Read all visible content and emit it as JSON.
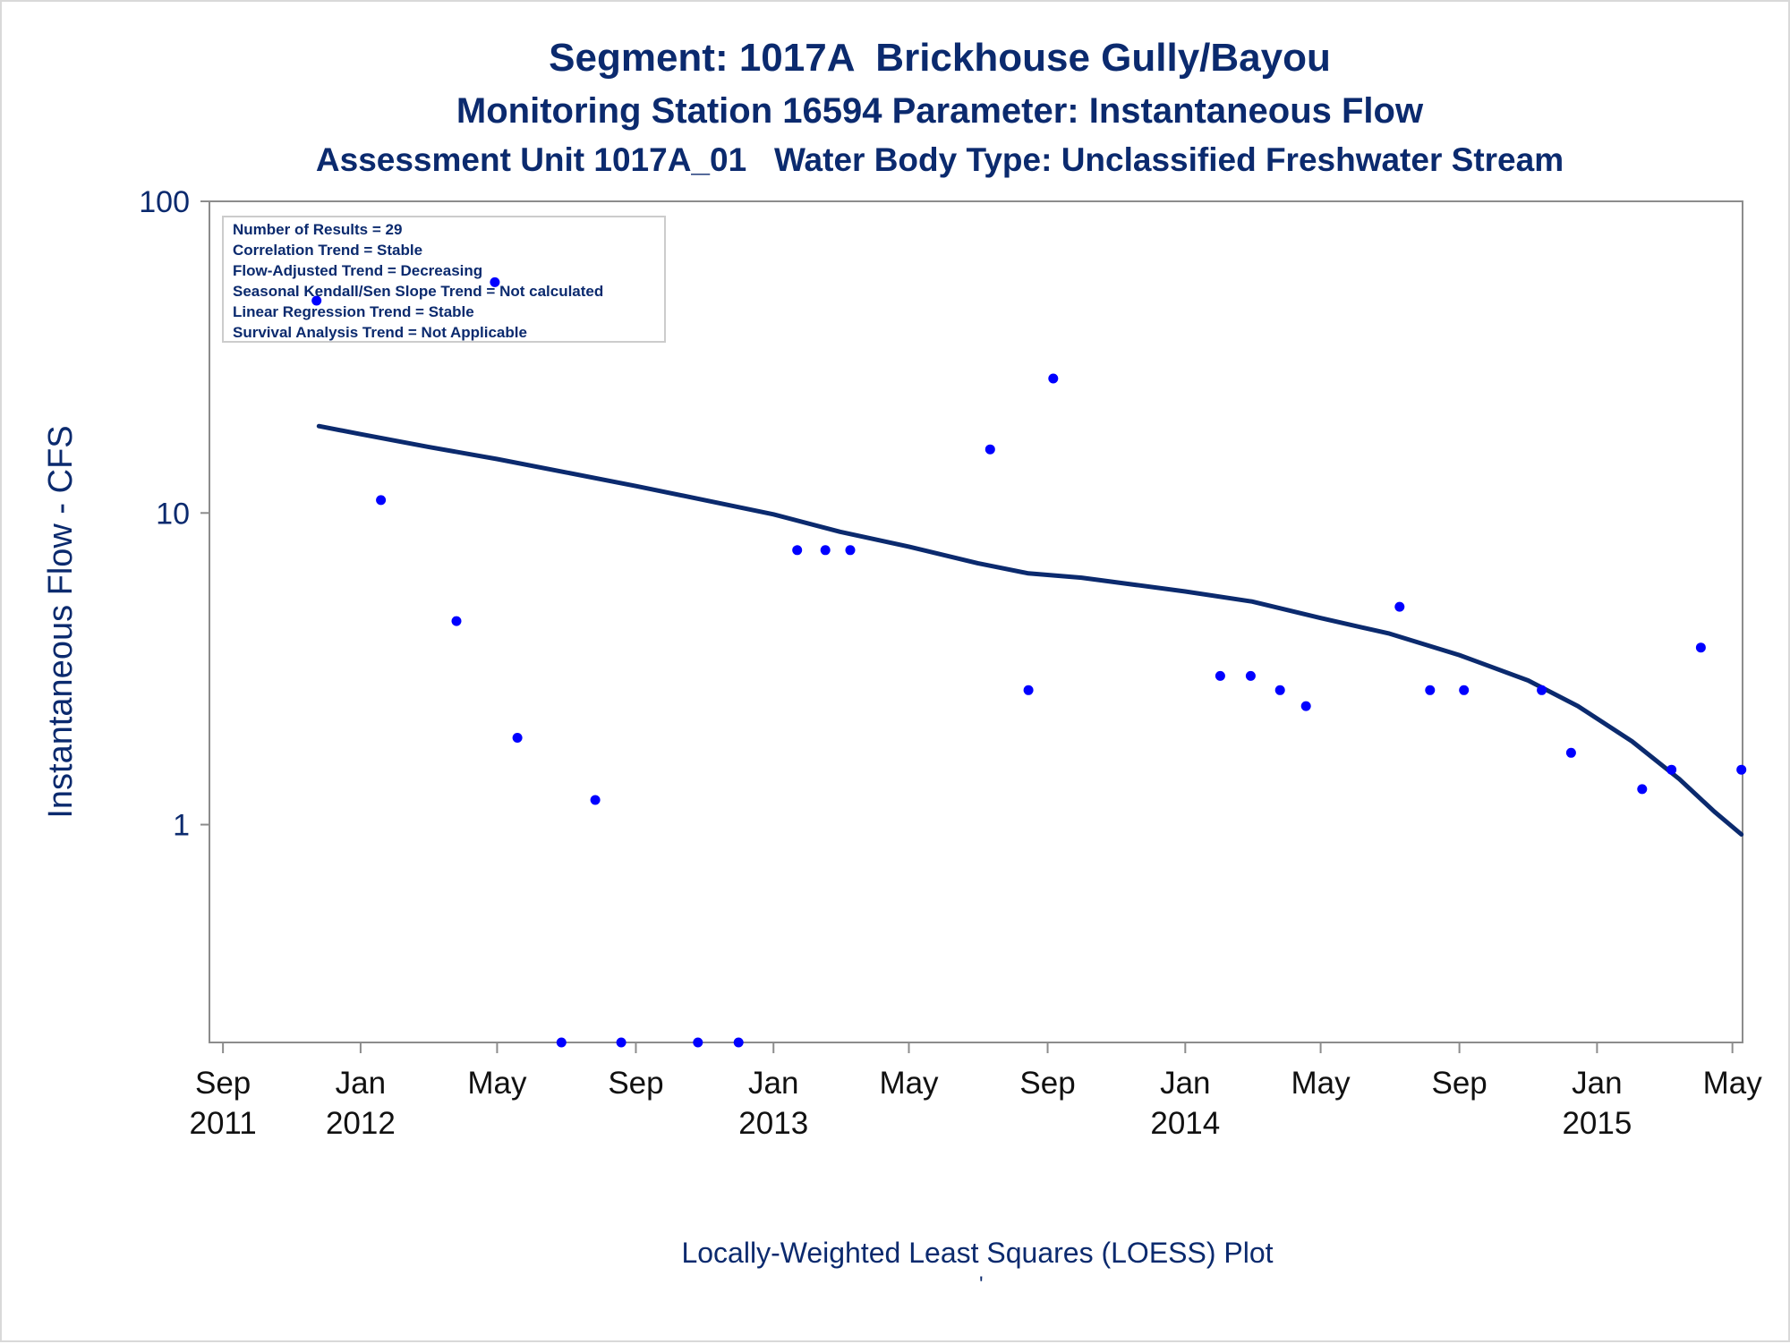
{
  "titles": {
    "line1": "Segment: 1017A  Brickhouse Gully/Bayou",
    "line2": "Monitoring Station 16594 Parameter: Instantaneous Flow",
    "line3": "Assessment Unit 1017A_01   Water Body Type: Unclassified Freshwater Stream"
  },
  "footnote": "Locally-Weighted Least Squares (LOESS) Plot",
  "footnote_mark": "'",
  "stats_box": [
    "Number of Results = 29",
    "Correlation Trend = Stable",
    "Flow-Adjusted Trend = Decreasing",
    "Seasonal Kendall/Sen Slope Trend = Not calculated",
    "Linear Regression Trend = Stable",
    "Survival Analysis Trend = Not Applicable"
  ],
  "colors": {
    "text": "#0b2a6e",
    "points": "#0000ff",
    "loess": "#0b2a6e",
    "axis": "#8c8c8c",
    "stats_border": "#cccccc"
  },
  "chart_data": {
    "type": "scatter",
    "ylabel": "Instantaneous Flow - CFS",
    "y_scale": "log",
    "ylim": [
      0.2,
      100
    ],
    "y_ticks": [
      {
        "value": 1,
        "label": "1"
      },
      {
        "value": 10,
        "label": "10"
      },
      {
        "value": 100,
        "label": "100"
      }
    ],
    "xlim": [
      "2011-08-20",
      "2015-05-10"
    ],
    "x_ticks": [
      {
        "date": "2011-09-01",
        "line1": "Sep",
        "line2": "2011"
      },
      {
        "date": "2012-01-01",
        "line1": "Jan",
        "line2": "2012"
      },
      {
        "date": "2012-05-01",
        "line1": "May",
        "line2": ""
      },
      {
        "date": "2012-09-01",
        "line1": "Sep",
        "line2": ""
      },
      {
        "date": "2013-01-01",
        "line1": "Jan",
        "line2": "2013"
      },
      {
        "date": "2013-05-01",
        "line1": "May",
        "line2": ""
      },
      {
        "date": "2013-09-01",
        "line1": "Sep",
        "line2": ""
      },
      {
        "date": "2014-01-01",
        "line1": "Jan",
        "line2": "2014"
      },
      {
        "date": "2014-05-01",
        "line1": "May",
        "line2": ""
      },
      {
        "date": "2014-09-01",
        "line1": "Sep",
        "line2": ""
      },
      {
        "date": "2015-01-01",
        "line1": "Jan",
        "line2": "2015"
      },
      {
        "date": "2015-05-01",
        "line1": "May",
        "line2": ""
      }
    ],
    "points": [
      {
        "x": "2011-11-23",
        "y": 48
      },
      {
        "x": "2012-01-19",
        "y": 11
      },
      {
        "x": "2012-03-26",
        "y": 4.5
      },
      {
        "x": "2012-04-29",
        "y": 55
      },
      {
        "x": "2012-05-19",
        "y": 1.9
      },
      {
        "x": "2012-06-27",
        "y": 0.2
      },
      {
        "x": "2012-07-27",
        "y": 1.2
      },
      {
        "x": "2012-08-19",
        "y": 0.2
      },
      {
        "x": "2012-10-26",
        "y": 0.2
      },
      {
        "x": "2012-12-01",
        "y": 0.2
      },
      {
        "x": "2013-01-22",
        "y": 7.6
      },
      {
        "x": "2013-02-16",
        "y": 7.6
      },
      {
        "x": "2013-03-10",
        "y": 7.6
      },
      {
        "x": "2013-07-12",
        "y": 16
      },
      {
        "x": "2013-08-15",
        "y": 2.7
      },
      {
        "x": "2013-09-06",
        "y": 27
      },
      {
        "x": "2014-02-01",
        "y": 3.0
      },
      {
        "x": "2014-02-28",
        "y": 3.0
      },
      {
        "x": "2014-03-26",
        "y": 2.7
      },
      {
        "x": "2014-04-18",
        "y": 2.4
      },
      {
        "x": "2014-07-10",
        "y": 5.0
      },
      {
        "x": "2014-08-06",
        "y": 2.7
      },
      {
        "x": "2014-09-05",
        "y": 2.7
      },
      {
        "x": "2014-11-13",
        "y": 2.7
      },
      {
        "x": "2014-12-09",
        "y": 1.7
      },
      {
        "x": "2015-02-10",
        "y": 1.3
      },
      {
        "x": "2015-03-08",
        "y": 1.5
      },
      {
        "x": "2015-04-03",
        "y": 3.7
      },
      {
        "x": "2015-05-09",
        "y": 1.5
      }
    ],
    "loess_curve": [
      {
        "x": "2011-11-25",
        "y": 19.0
      },
      {
        "x": "2012-01-01",
        "y": 17.9
      },
      {
        "x": "2012-03-01",
        "y": 16.3
      },
      {
        "x": "2012-05-01",
        "y": 14.9
      },
      {
        "x": "2012-07-01",
        "y": 13.5
      },
      {
        "x": "2012-09-01",
        "y": 12.2
      },
      {
        "x": "2012-11-01",
        "y": 11.0
      },
      {
        "x": "2013-01-01",
        "y": 9.9
      },
      {
        "x": "2013-03-01",
        "y": 8.7
      },
      {
        "x": "2013-05-01",
        "y": 7.8
      },
      {
        "x": "2013-07-01",
        "y": 6.9
      },
      {
        "x": "2013-08-15",
        "y": 6.4
      },
      {
        "x": "2013-10-01",
        "y": 6.2
      },
      {
        "x": "2014-01-01",
        "y": 5.6
      },
      {
        "x": "2014-03-01",
        "y": 5.2
      },
      {
        "x": "2014-05-01",
        "y": 4.6
      },
      {
        "x": "2014-07-01",
        "y": 4.1
      },
      {
        "x": "2014-09-01",
        "y": 3.5
      },
      {
        "x": "2014-11-01",
        "y": 2.9
      },
      {
        "x": "2014-12-15",
        "y": 2.4
      },
      {
        "x": "2015-02-01",
        "y": 1.85
      },
      {
        "x": "2015-03-15",
        "y": 1.4
      },
      {
        "x": "2015-04-15",
        "y": 1.1
      },
      {
        "x": "2015-05-09",
        "y": 0.93
      }
    ]
  }
}
